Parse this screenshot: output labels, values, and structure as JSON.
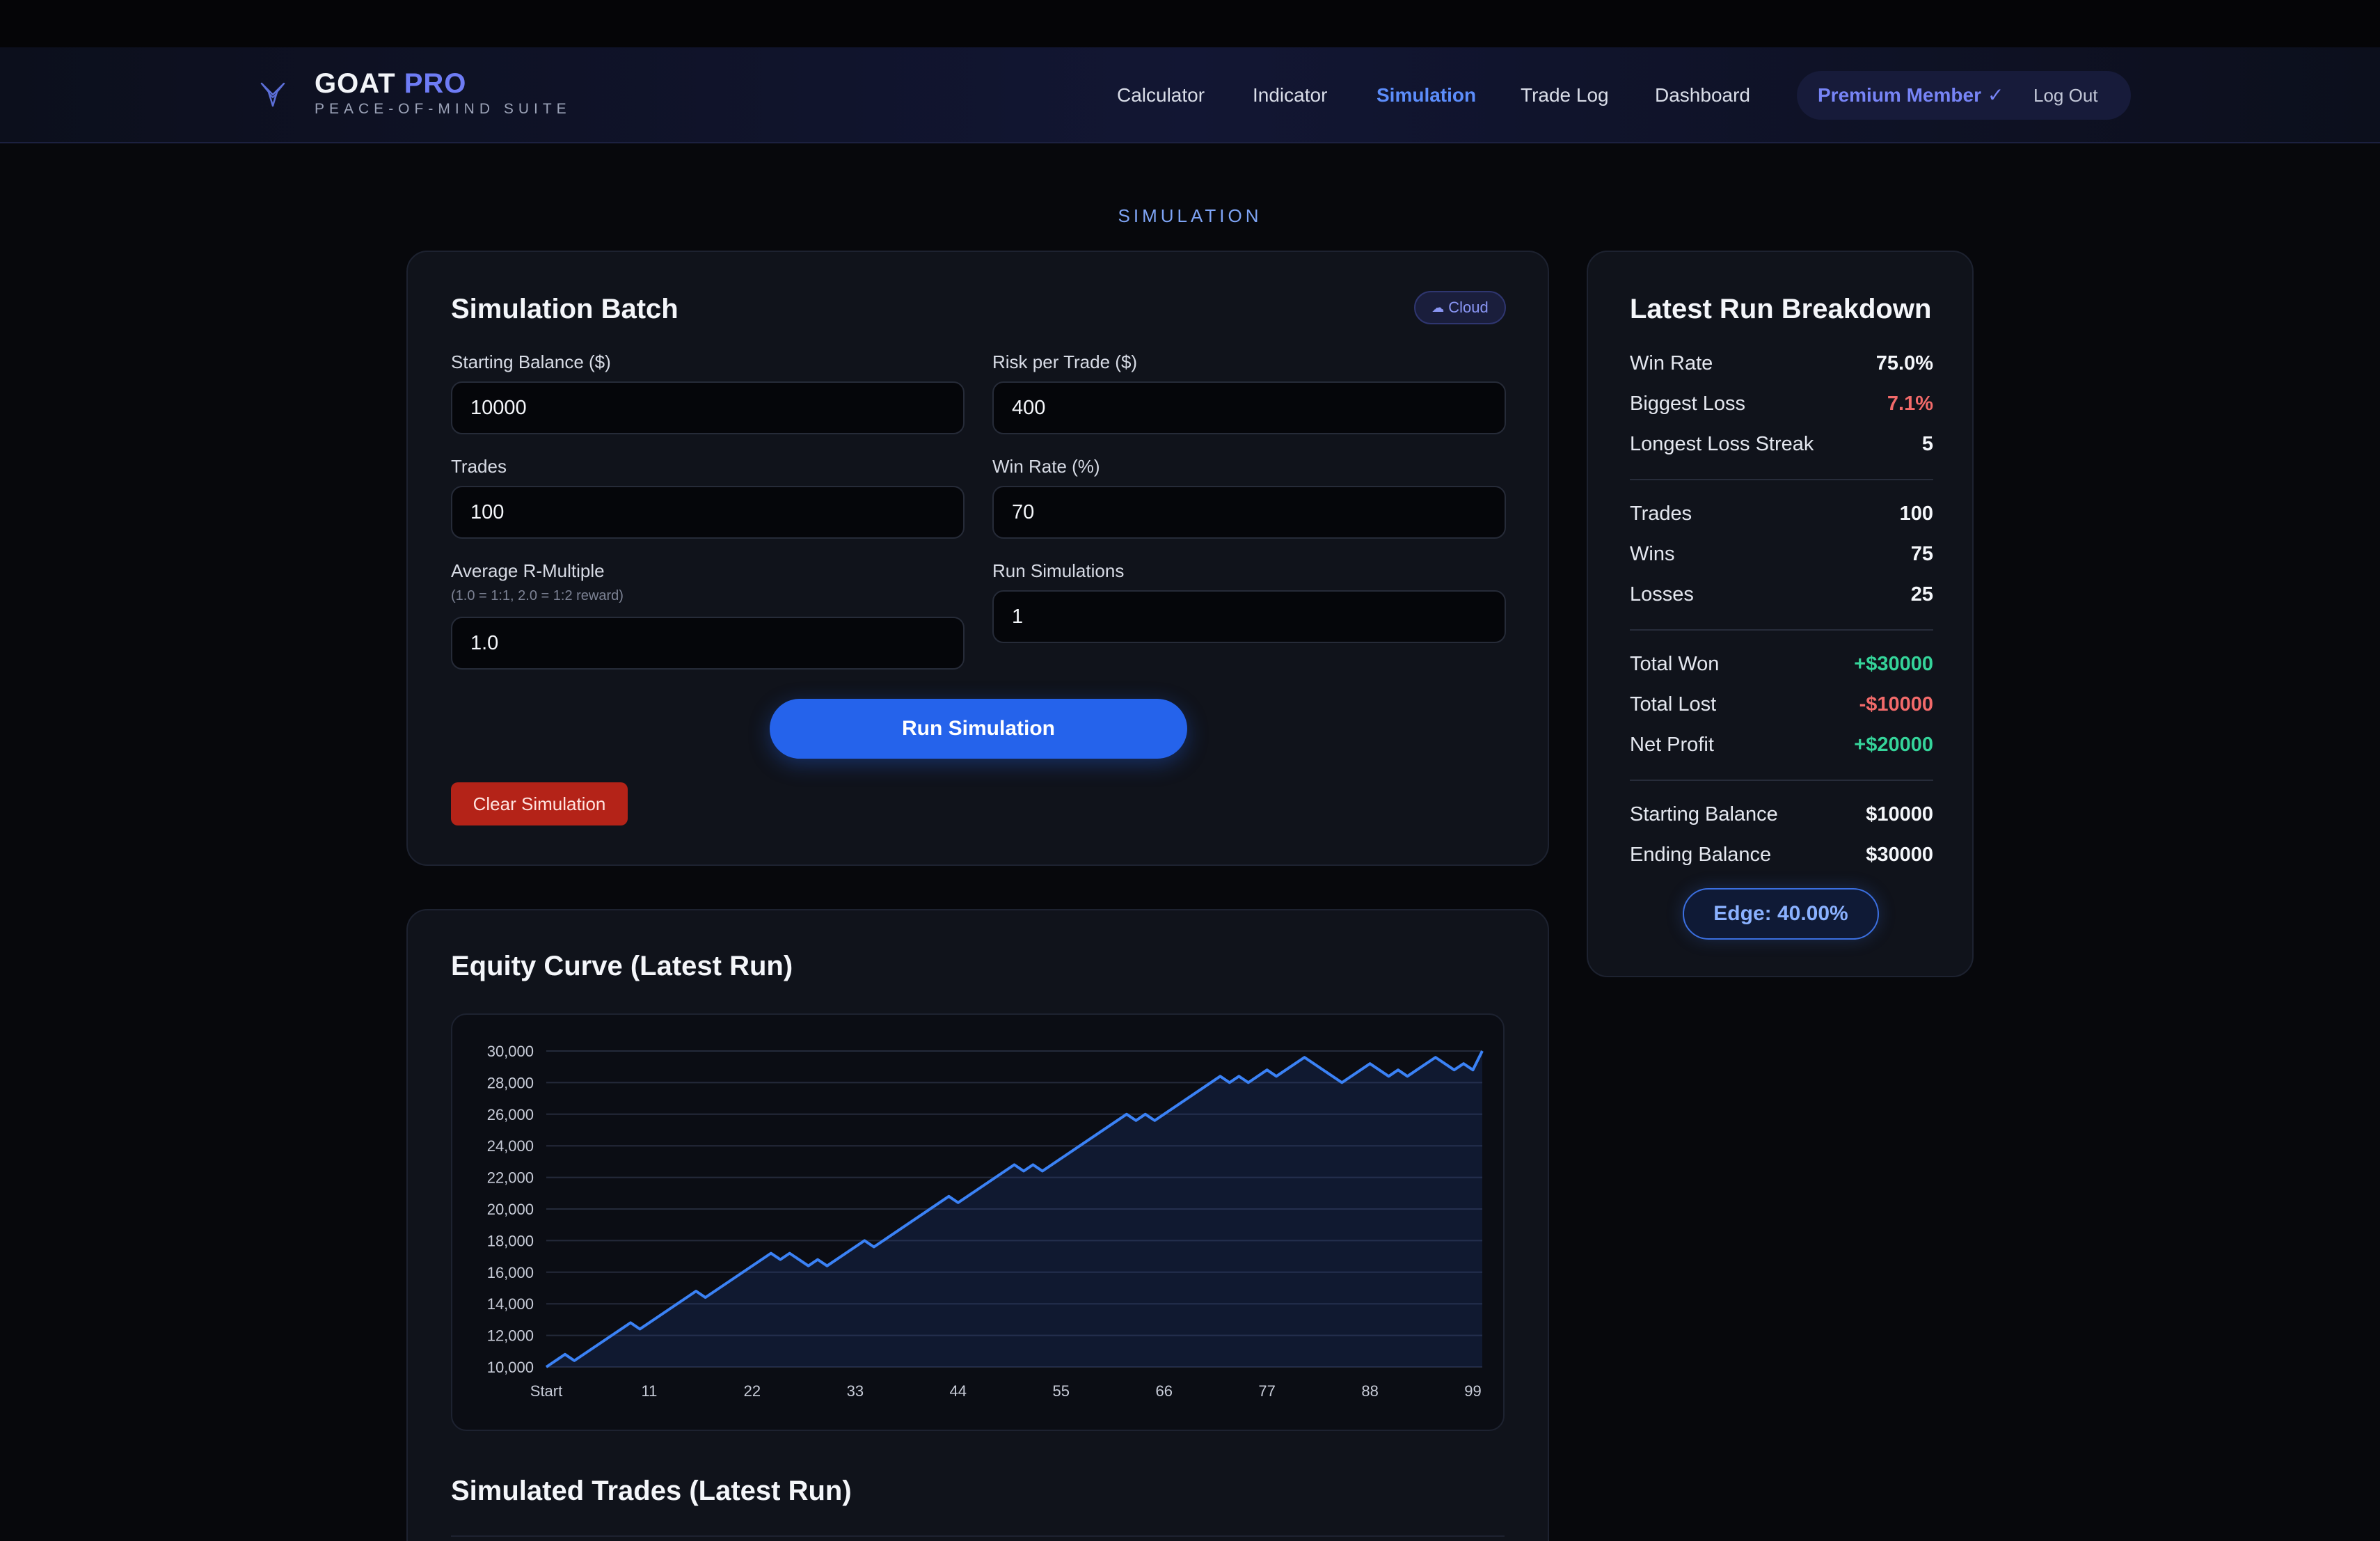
{
  "brand": {
    "name": "GOAT",
    "name_accent": "PRO",
    "tagline": "PEACE-OF-MIND SUITE"
  },
  "nav": {
    "items": [
      {
        "label": "Calculator",
        "active": false
      },
      {
        "label": "Indicator",
        "active": false
      },
      {
        "label": "Simulation",
        "active": true
      },
      {
        "label": "Trade Log",
        "active": false
      },
      {
        "label": "Dashboard",
        "active": false
      }
    ],
    "member_label": "Premium Member",
    "member_check": "✓",
    "logout_label": "Log Out"
  },
  "page": {
    "section_label": "SIMULATION"
  },
  "batch": {
    "title": "Simulation Batch",
    "badge": "Cloud",
    "fields": {
      "starting_balance": {
        "label": "Starting Balance ($)",
        "value": "10000"
      },
      "risk_per_trade": {
        "label": "Risk per Trade ($)",
        "value": "400"
      },
      "trades": {
        "label": "Trades",
        "value": "100"
      },
      "win_rate": {
        "label": "Win Rate (%)",
        "value": "70"
      },
      "avg_r": {
        "label": "Average R-Multiple",
        "hint": "(1.0 = 1:1, 2.0 = 1:2 reward)",
        "value": "1.0"
      },
      "run_sims": {
        "label": "Run Simulations",
        "value": "1"
      }
    },
    "run_button": "Run Simulation",
    "clear_button": "Clear Simulation"
  },
  "breakdown": {
    "title": "Latest Run Breakdown",
    "win_rate": {
      "label": "Win Rate",
      "value": "75.0%"
    },
    "biggest_loss": {
      "label": "Biggest Loss",
      "value": "7.1%"
    },
    "loss_streak": {
      "label": "Longest Loss Streak",
      "value": "5"
    },
    "trades": {
      "label": "Trades",
      "value": "100"
    },
    "wins": {
      "label": "Wins",
      "value": "75"
    },
    "losses": {
      "label": "Losses",
      "value": "25"
    },
    "total_won": {
      "label": "Total Won",
      "value": "+$30000"
    },
    "total_lost": {
      "label": "Total Lost",
      "value": "-$10000"
    },
    "net_profit": {
      "label": "Net Profit",
      "value": "+$20000"
    },
    "starting_balance": {
      "label": "Starting Balance",
      "value": "$10000"
    },
    "ending_balance": {
      "label": "Ending Balance",
      "value": "$30000"
    },
    "edge": "Edge: 40.00%"
  },
  "colors": {
    "accent_blue": "#2563eb",
    "line_blue": "#3b82f6",
    "green": "#35d49a",
    "red": "#f26a6a",
    "danger_button": "#b42318"
  },
  "equity": {
    "title": "Equity Curve (Latest Run)"
  },
  "trades_section": {
    "title": "Simulated Trades (Latest Run)"
  },
  "chart_data": {
    "type": "area",
    "title": "",
    "xlabel": "",
    "ylabel": "",
    "ylim": [
      10000,
      30000
    ],
    "yticks": [
      10000,
      12000,
      14000,
      16000,
      18000,
      20000,
      22000,
      24000,
      26000,
      28000,
      30000
    ],
    "ytick_labels": [
      "10,000",
      "12,000",
      "14,000",
      "16,000",
      "18,000",
      "20,000",
      "22,000",
      "24,000",
      "26,000",
      "28,000",
      "30,000"
    ],
    "xticks": [
      0,
      11,
      22,
      33,
      44,
      55,
      66,
      77,
      88,
      99
    ],
    "xtick_labels": [
      "Start",
      "11",
      "22",
      "33",
      "44",
      "55",
      "66",
      "77",
      "88",
      "99"
    ],
    "xlim": [
      0,
      100
    ],
    "grid": true,
    "series": [
      {
        "points": [
          [
            0,
            10000
          ],
          [
            2,
            10800
          ],
          [
            3,
            10400
          ],
          [
            9,
            12800
          ],
          [
            10,
            12400
          ],
          [
            16,
            14800
          ],
          [
            17,
            14400
          ],
          [
            24,
            17200
          ],
          [
            25,
            16800
          ],
          [
            26,
            17200
          ],
          [
            28,
            16400
          ],
          [
            29,
            16800
          ],
          [
            30,
            16400
          ],
          [
            34,
            18000
          ],
          [
            35,
            17600
          ],
          [
            43,
            20800
          ],
          [
            44,
            20400
          ],
          [
            50,
            22800
          ],
          [
            51,
            22400
          ],
          [
            52,
            22800
          ],
          [
            53,
            22400
          ],
          [
            62,
            26000
          ],
          [
            63,
            25600
          ],
          [
            64,
            26000
          ],
          [
            65,
            25600
          ],
          [
            72,
            28400
          ],
          [
            73,
            28000
          ],
          [
            74,
            28400
          ],
          [
            75,
            28000
          ],
          [
            77,
            28800
          ],
          [
            78,
            28400
          ],
          [
            81,
            29600
          ],
          [
            85,
            28000
          ],
          [
            88,
            29200
          ],
          [
            90,
            28400
          ],
          [
            91,
            28800
          ],
          [
            92,
            28400
          ],
          [
            95,
            29600
          ],
          [
            97,
            28800
          ],
          [
            98,
            29200
          ],
          [
            99,
            28800
          ],
          [
            100,
            30000
          ]
        ]
      }
    ]
  }
}
